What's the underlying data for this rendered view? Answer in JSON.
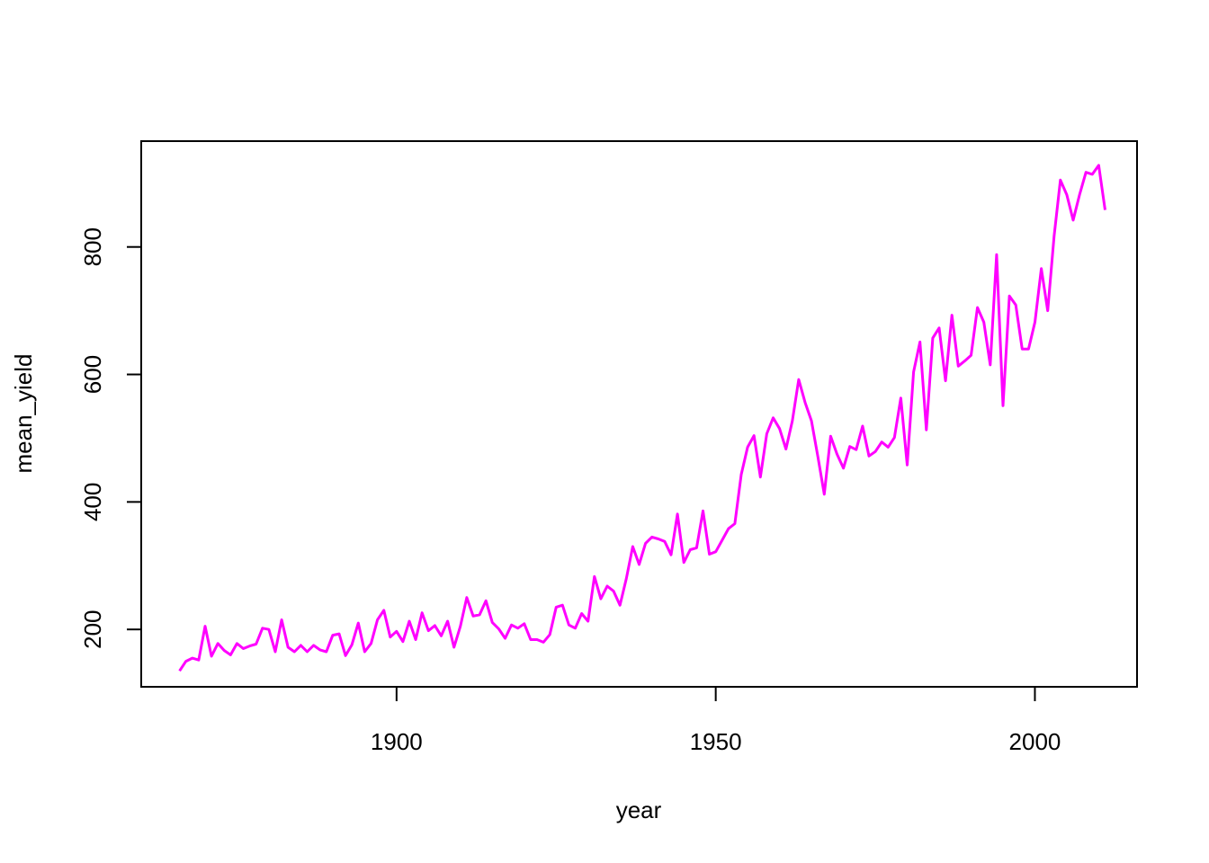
{
  "chart_data": {
    "type": "line",
    "xlabel": "year",
    "ylabel": "mean_yield",
    "xlim": [
      1860,
      2016
    ],
    "ylim": [
      110,
      966
    ],
    "x_ticks": [
      1900,
      1950,
      2000
    ],
    "y_ticks": [
      200,
      400,
      600,
      800
    ],
    "grid": false,
    "legend": "none",
    "series": [
      {
        "color": "#ff00ff",
        "x": [
          1866,
          1867,
          1868,
          1869,
          1870,
          1871,
          1872,
          1873,
          1874,
          1875,
          1876,
          1877,
          1878,
          1879,
          1880,
          1881,
          1882,
          1883,
          1884,
          1885,
          1886,
          1887,
          1888,
          1889,
          1890,
          1891,
          1892,
          1893,
          1894,
          1895,
          1896,
          1897,
          1898,
          1899,
          1900,
          1901,
          1902,
          1903,
          1904,
          1905,
          1906,
          1907,
          1908,
          1909,
          1910,
          1911,
          1912,
          1913,
          1914,
          1915,
          1916,
          1917,
          1918,
          1919,
          1920,
          1921,
          1922,
          1923,
          1924,
          1925,
          1926,
          1927,
          1928,
          1929,
          1930,
          1931,
          1932,
          1933,
          1934,
          1935,
          1936,
          1937,
          1938,
          1939,
          1940,
          1941,
          1942,
          1943,
          1944,
          1945,
          1946,
          1947,
          1948,
          1949,
          1950,
          1951,
          1952,
          1953,
          1954,
          1955,
          1956,
          1957,
          1958,
          1959,
          1960,
          1961,
          1962,
          1963,
          1964,
          1965,
          1966,
          1967,
          1968,
          1969,
          1970,
          1971,
          1972,
          1973,
          1974,
          1975,
          1976,
          1977,
          1978,
          1979,
          1980,
          1981,
          1982,
          1983,
          1984,
          1985,
          1986,
          1987,
          1988,
          1989,
          1990,
          1991,
          1992,
          1993,
          1994,
          1995,
          1996,
          1997,
          1998,
          1999,
          2000,
          2001,
          2002,
          2003,
          2004,
          2005,
          2006,
          2007,
          2008,
          2009,
          2010,
          2011
        ],
        "y": [
          135,
          150,
          155,
          152,
          205,
          158,
          178,
          167,
          160,
          178,
          170,
          174,
          177,
          202,
          200,
          165,
          215,
          172,
          165,
          175,
          165,
          175,
          168,
          165,
          191,
          193,
          159,
          176,
          210,
          165,
          178,
          215,
          230,
          188,
          197,
          181,
          213,
          184,
          226,
          198,
          206,
          190,
          213,
          172,
          205,
          250,
          221,
          223,
          245,
          211,
          201,
          186,
          207,
          202,
          209,
          184,
          184,
          180,
          192,
          235,
          238,
          207,
          202,
          225,
          213,
          283,
          248,
          268,
          260,
          238,
          280,
          330,
          302,
          335,
          345,
          342,
          338,
          317,
          381,
          305,
          325,
          328,
          386,
          318,
          322,
          340,
          358,
          366,
          443,
          486,
          504,
          439,
          507,
          532,
          515,
          483,
          527,
          592,
          556,
          527,
          471,
          412,
          503,
          475,
          453,
          487,
          482,
          519,
          472,
          479,
          494,
          486,
          501,
          563,
          458,
          604,
          651,
          513,
          657,
          673,
          590,
          693,
          613,
          621,
          630,
          705,
          682,
          615,
          788,
          551,
          723,
          709,
          640,
          640,
          682,
          766,
          700,
          817,
          905,
          882,
          842,
          882,
          917,
          914,
          928,
          858
        ]
      }
    ]
  }
}
